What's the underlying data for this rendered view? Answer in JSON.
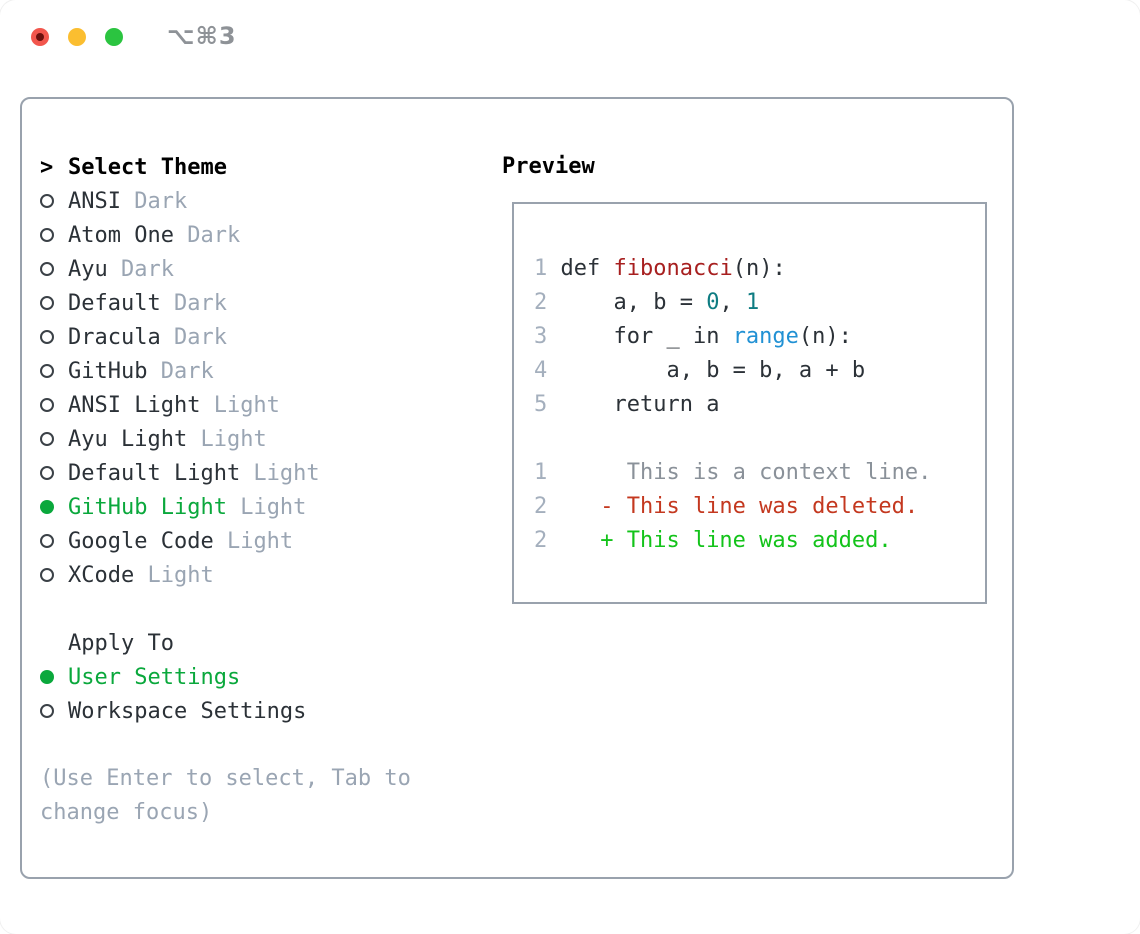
{
  "window": {
    "title": "⌥⌘3",
    "traffic_lights": [
      {
        "name": "close",
        "color": "#F2564D"
      },
      {
        "name": "minimize",
        "color": "#FBBE30"
      },
      {
        "name": "zoom",
        "color": "#2BC440"
      }
    ]
  },
  "theme_panel": {
    "header": {
      "marker": ">",
      "label": "Select Theme"
    },
    "themes": [
      {
        "name": "ANSI",
        "variant": "Dark",
        "selected": false
      },
      {
        "name": "Atom One",
        "variant": "Dark",
        "selected": false
      },
      {
        "name": "Ayu",
        "variant": "Dark",
        "selected": false
      },
      {
        "name": "Default",
        "variant": "Dark",
        "selected": false
      },
      {
        "name": "Dracula",
        "variant": "Dark",
        "selected": false
      },
      {
        "name": "GitHub",
        "variant": "Dark",
        "selected": false
      },
      {
        "name": "ANSI Light",
        "variant": "Light",
        "selected": false
      },
      {
        "name": "Ayu Light",
        "variant": "Light",
        "selected": false
      },
      {
        "name": "Default Light",
        "variant": "Light",
        "selected": false
      },
      {
        "name": "GitHub Light",
        "variant": "Light",
        "selected": true
      },
      {
        "name": "Google Code",
        "variant": "Light",
        "selected": false
      },
      {
        "name": "XCode",
        "variant": "Light",
        "selected": false
      }
    ],
    "apply_to": {
      "label": "Apply To",
      "options": [
        {
          "name": "User Settings",
          "selected": true
        },
        {
          "name": "Workspace Settings",
          "selected": false
        }
      ]
    },
    "hint_lines": [
      "(Use Enter to select, Tab to",
      "change focus)"
    ]
  },
  "preview": {
    "label": "Preview",
    "code_lines": [
      [
        {
          "t": "1 ",
          "c": "lineno"
        },
        {
          "t": "def ",
          "c": "code"
        },
        {
          "t": "fibonacci",
          "c": "func"
        },
        {
          "t": "(n):",
          "c": "code"
        }
      ],
      [
        {
          "t": "2",
          "c": "lineno"
        },
        {
          "t": "     a, b = ",
          "c": "code"
        },
        {
          "t": "0",
          "c": "num"
        },
        {
          "t": ", ",
          "c": "code"
        },
        {
          "t": "1",
          "c": "num"
        }
      ],
      [
        {
          "t": "3",
          "c": "lineno"
        },
        {
          "t": "     for _ in ",
          "c": "code"
        },
        {
          "t": "range",
          "c": "builtin"
        },
        {
          "t": "(n):",
          "c": "code"
        }
      ],
      [
        {
          "t": "4",
          "c": "lineno"
        },
        {
          "t": "         a, b = b, a + b",
          "c": "code"
        }
      ],
      [
        {
          "t": "5",
          "c": "lineno"
        },
        {
          "t": "     return a",
          "c": "code"
        }
      ],
      [],
      [
        {
          "t": "1",
          "c": "lineno"
        },
        {
          "t": "      This is a context line.",
          "c": "context"
        }
      ],
      [
        {
          "t": "2",
          "c": "lineno"
        },
        {
          "t": "    - This line was deleted.",
          "c": "del"
        }
      ],
      [
        {
          "t": "2",
          "c": "lineno"
        },
        {
          "t": "    + This line was added.",
          "c": "add"
        }
      ]
    ]
  },
  "colors": {
    "text_dark": "#2B3137",
    "muted": "#9AA5B3",
    "line_number": "#A4AFBD",
    "context": "#8A9199",
    "selected_green": "#0AA83C",
    "diff_added_green": "#13C31A",
    "diff_deleted_red": "#C4381F",
    "function_red": "#A71F1F",
    "number_teal": "#0E7C82",
    "builtin_blue": "#2191D4",
    "panel_border": "#99A2AD",
    "radio_outline": "#3B4147",
    "title_gray": "#8E9297",
    "traffic_red": "#F2564D",
    "traffic_red_dot": "#6B100E",
    "traffic_yellow": "#FBBE30",
    "traffic_green": "#2BC440"
  }
}
